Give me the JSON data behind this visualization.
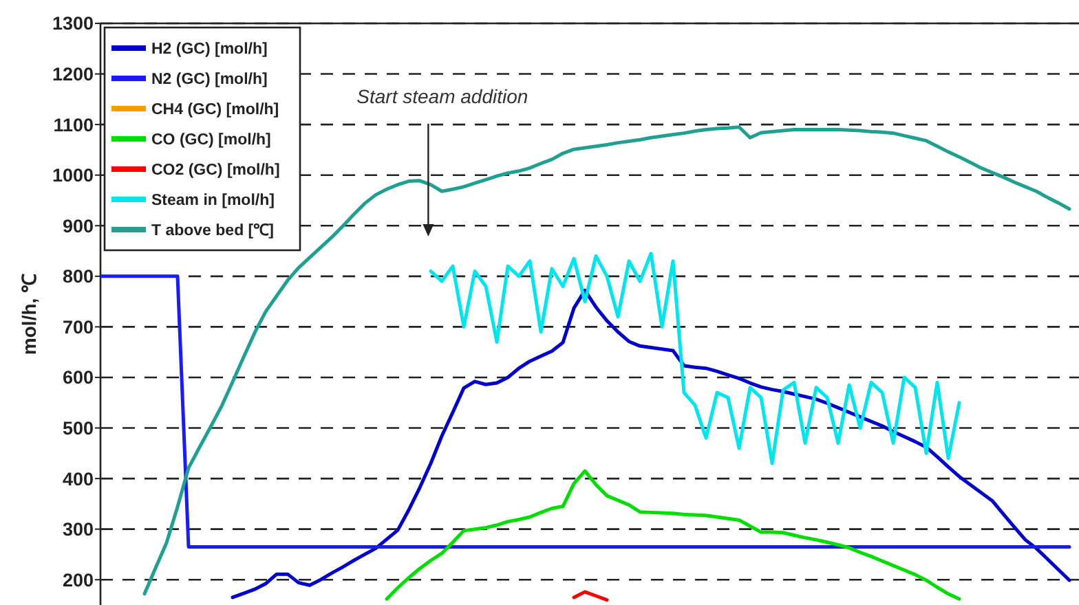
{
  "chart_data": {
    "type": "line",
    "ylabel": "mol/h, ℃",
    "categories": [
      null,
      null,
      null,
      null,
      null,
      null,
      null,
      null,
      null,
      null,
      null,
      null,
      null,
      null,
      null,
      null,
      null,
      null,
      null,
      null,
      null,
      null,
      null,
      null,
      null,
      null,
      null,
      null,
      null,
      null,
      null,
      null,
      null,
      null,
      null,
      null,
      null,
      null,
      null,
      null,
      null,
      null,
      null,
      null,
      null,
      null,
      null,
      null,
      null,
      null,
      null,
      null,
      null,
      null,
      null,
      null,
      null,
      null,
      null,
      null,
      null,
      null,
      null,
      null,
      null,
      null,
      null,
      null,
      null,
      null,
      null,
      null,
      null,
      null,
      null,
      null,
      null,
      null,
      null,
      null,
      null,
      null,
      null,
      null,
      null,
      null,
      null,
      null,
      null
    ],
    "ylim": [
      150,
      1300
    ],
    "yticks": [
      200,
      300,
      400,
      500,
      600,
      700,
      800,
      900,
      1000,
      1100,
      1200,
      1300
    ],
    "grid": "y",
    "legend": "top left",
    "line_style": "solid",
    "marker": "none",
    "annotations": [
      "Start steam addition"
    ],
    "series": [
      {
        "name": "H2 (GC) [mol/h]",
        "color": "#0000cc",
        "values": [
          null,
          null,
          null,
          null,
          null,
          null,
          null,
          null,
          null,
          null,
          null,
          null,
          165,
          173,
          181,
          192,
          211,
          211,
          194,
          189,
          200,
          213,
          225,
          238,
          250,
          262,
          280,
          298,
          338,
          382,
          430,
          484,
          531,
          579,
          592,
          586,
          589,
          600,
          618,
          632,
          642,
          652,
          669,
          737,
          772,
          739,
          712,
          690,
          671,
          662,
          659,
          656,
          653,
          623,
          620,
          618,
          612,
          605,
          598,
          589,
          581,
          576,
          572,
          567,
          562,
          557,
          549,
          540,
          531,
          522,
          513,
          504,
          493,
          483,
          473,
          462,
          443,
          423,
          404,
          388,
          372,
          356,
          330,
          304,
          279,
          262,
          241,
          220,
          199
        ]
      },
      {
        "name": "N2 (GC) [mol/h]",
        "color": "#1a1aff",
        "values": [
          800,
          800,
          800,
          800,
          800,
          800,
          800,
          800,
          265,
          265,
          265,
          265,
          265,
          265,
          265,
          265,
          265,
          265,
          265,
          265,
          265,
          265,
          265,
          265,
          265,
          265,
          265,
          265,
          265,
          265,
          265,
          265,
          265,
          265,
          265,
          265,
          265,
          265,
          265,
          265,
          265,
          265,
          265,
          265,
          265,
          265,
          265,
          265,
          265,
          265,
          265,
          265,
          265,
          265,
          265,
          265,
          265,
          265,
          265,
          265,
          265,
          265,
          265,
          265,
          265,
          265,
          265,
          265,
          265,
          265,
          265,
          265,
          265,
          265,
          265,
          265,
          265,
          265,
          265,
          265,
          265,
          265,
          265,
          265,
          265,
          265,
          265,
          265,
          265
        ]
      },
      {
        "name": "CH4 (GC) [mol/h]",
        "color": "#ff9900",
        "values": [
          null,
          null,
          null,
          null,
          null,
          null,
          null,
          null,
          null,
          null,
          null,
          null,
          null,
          null,
          null,
          null,
          null,
          null,
          null,
          null,
          null,
          null,
          null,
          null,
          null,
          null,
          null,
          null,
          null,
          null,
          null,
          null,
          null,
          null,
          null,
          null,
          null,
          null,
          null,
          null,
          null,
          null,
          null,
          null,
          null,
          null,
          null,
          null,
          null,
          null,
          null,
          null,
          null,
          null,
          null,
          null,
          null,
          null,
          null,
          null,
          null,
          null,
          null,
          null,
          null,
          null,
          null,
          null,
          null,
          null,
          null,
          null,
          null,
          null,
          null,
          null,
          null,
          null,
          null,
          null,
          null,
          null,
          null,
          null,
          null,
          null,
          null,
          null,
          null
        ]
      },
      {
        "name": "CO (GC) [mol/h]",
        "color": "#00dd00",
        "values": [
          null,
          null,
          null,
          null,
          null,
          null,
          null,
          null,
          null,
          null,
          null,
          null,
          null,
          null,
          null,
          null,
          null,
          null,
          null,
          null,
          null,
          null,
          null,
          null,
          null,
          null,
          162,
          184,
          204,
          222,
          238,
          252,
          274,
          297,
          300,
          303,
          308,
          315,
          319,
          324,
          333,
          341,
          345,
          390,
          415,
          388,
          366,
          357,
          348,
          334,
          333,
          332,
          331,
          329,
          328,
          327,
          324,
          321,
          318,
          306,
          294,
          294,
          293,
          288,
          283,
          279,
          274,
          269,
          263,
          254,
          246,
          237,
          228,
          219,
          210,
          199,
          185,
          172,
          162,
          null,
          null,
          null,
          null,
          null,
          null,
          null,
          null,
          null,
          null
        ]
      },
      {
        "name": "CO2 (GC) [mol/h]",
        "color": "#ff0000",
        "values": [
          null,
          null,
          null,
          null,
          null,
          null,
          null,
          null,
          null,
          null,
          null,
          null,
          null,
          null,
          null,
          null,
          null,
          null,
          null,
          null,
          null,
          null,
          null,
          null,
          null,
          null,
          null,
          null,
          null,
          null,
          null,
          null,
          null,
          null,
          null,
          null,
          null,
          null,
          null,
          null,
          null,
          null,
          null,
          165,
          176,
          168,
          160,
          null,
          null,
          null,
          null,
          null,
          null,
          null,
          null,
          null,
          null,
          null,
          null,
          null,
          null,
          null,
          null,
          null,
          null,
          null,
          null,
          null,
          null,
          null,
          null,
          null,
          null,
          null,
          null,
          null,
          null,
          null,
          null,
          null,
          null,
          null,
          null,
          null,
          null,
          null,
          null,
          null,
          null
        ]
      },
      {
        "name": "Steam in [mol/h]",
        "color": "#00e5ee",
        "values": [
          null,
          null,
          null,
          null,
          null,
          null,
          null,
          null,
          null,
          null,
          null,
          null,
          null,
          null,
          null,
          null,
          null,
          null,
          null,
          null,
          null,
          null,
          null,
          null,
          null,
          null,
          null,
          null,
          null,
          null,
          810,
          790,
          820,
          700,
          810,
          780,
          670,
          820,
          800,
          830,
          690,
          815,
          780,
          835,
          750,
          840,
          800,
          720,
          830,
          790,
          845,
          700,
          830,
          570,
          545,
          480,
          570,
          560,
          460,
          580,
          560,
          430,
          575,
          590,
          470,
          580,
          560,
          470,
          585,
          500,
          590,
          570,
          470,
          600,
          580,
          450,
          590,
          440,
          550,
          null,
          null,
          null,
          null,
          null,
          null,
          null,
          null,
          null,
          null
        ]
      },
      {
        "name": "T above bed [℃]",
        "color": "#20a090",
        "values": [
          null,
          null,
          null,
          null,
          172,
          223,
          273,
          344,
          421,
          462,
          502,
          543,
          591,
          640,
          688,
          730,
          761,
          792,
          817,
          837,
          857,
          877,
          899,
          922,
          944,
          961,
          972,
          981,
          988,
          989,
          981,
          968,
          972,
          977,
          984,
          991,
          998,
          1004,
          1008,
          1014,
          1023,
          1031,
          1043,
          1051,
          1054,
          1057,
          1060,
          1064,
          1067,
          1070,
          1074,
          1077,
          1080,
          1083,
          1087,
          1090,
          1092,
          1093,
          1095,
          1074,
          1084,
          1086,
          1088,
          1090,
          1090,
          1090,
          1090,
          1090,
          1089,
          1088,
          1086,
          1085,
          1083,
          1078,
          1073,
          1068,
          1057,
          1046,
          1036,
          1025,
          1014,
          1005,
          996,
          986,
          977,
          968,
          956,
          945,
          933
        ]
      }
    ]
  }
}
